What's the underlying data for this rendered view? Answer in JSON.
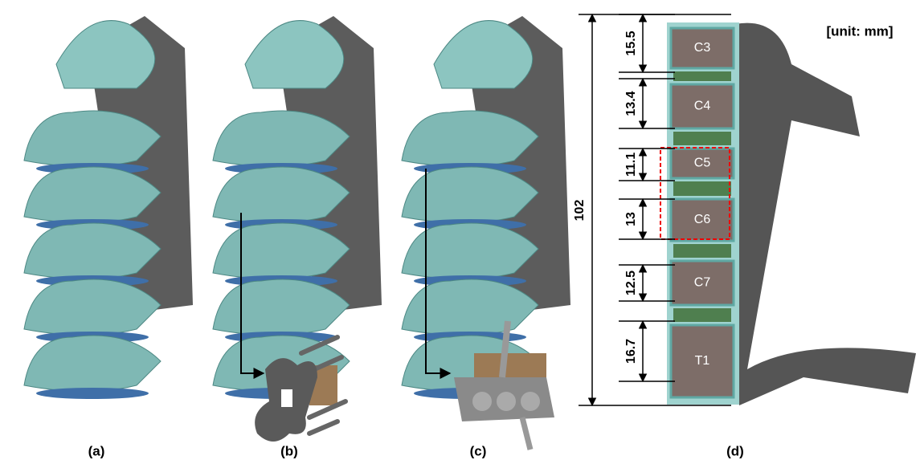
{
  "panels": [
    "(a)",
    "(b)",
    "(c)",
    "(d)"
  ],
  "dimensions": {
    "unit": "[unit: mm]",
    "total": "102",
    "segments": [
      "15.5",
      "13.4",
      "11.1",
      "13",
      "12.5",
      "16.7"
    ]
  },
  "vertebrae": [
    "C3",
    "C4",
    "C5",
    "C6",
    "C7",
    "T1"
  ]
}
